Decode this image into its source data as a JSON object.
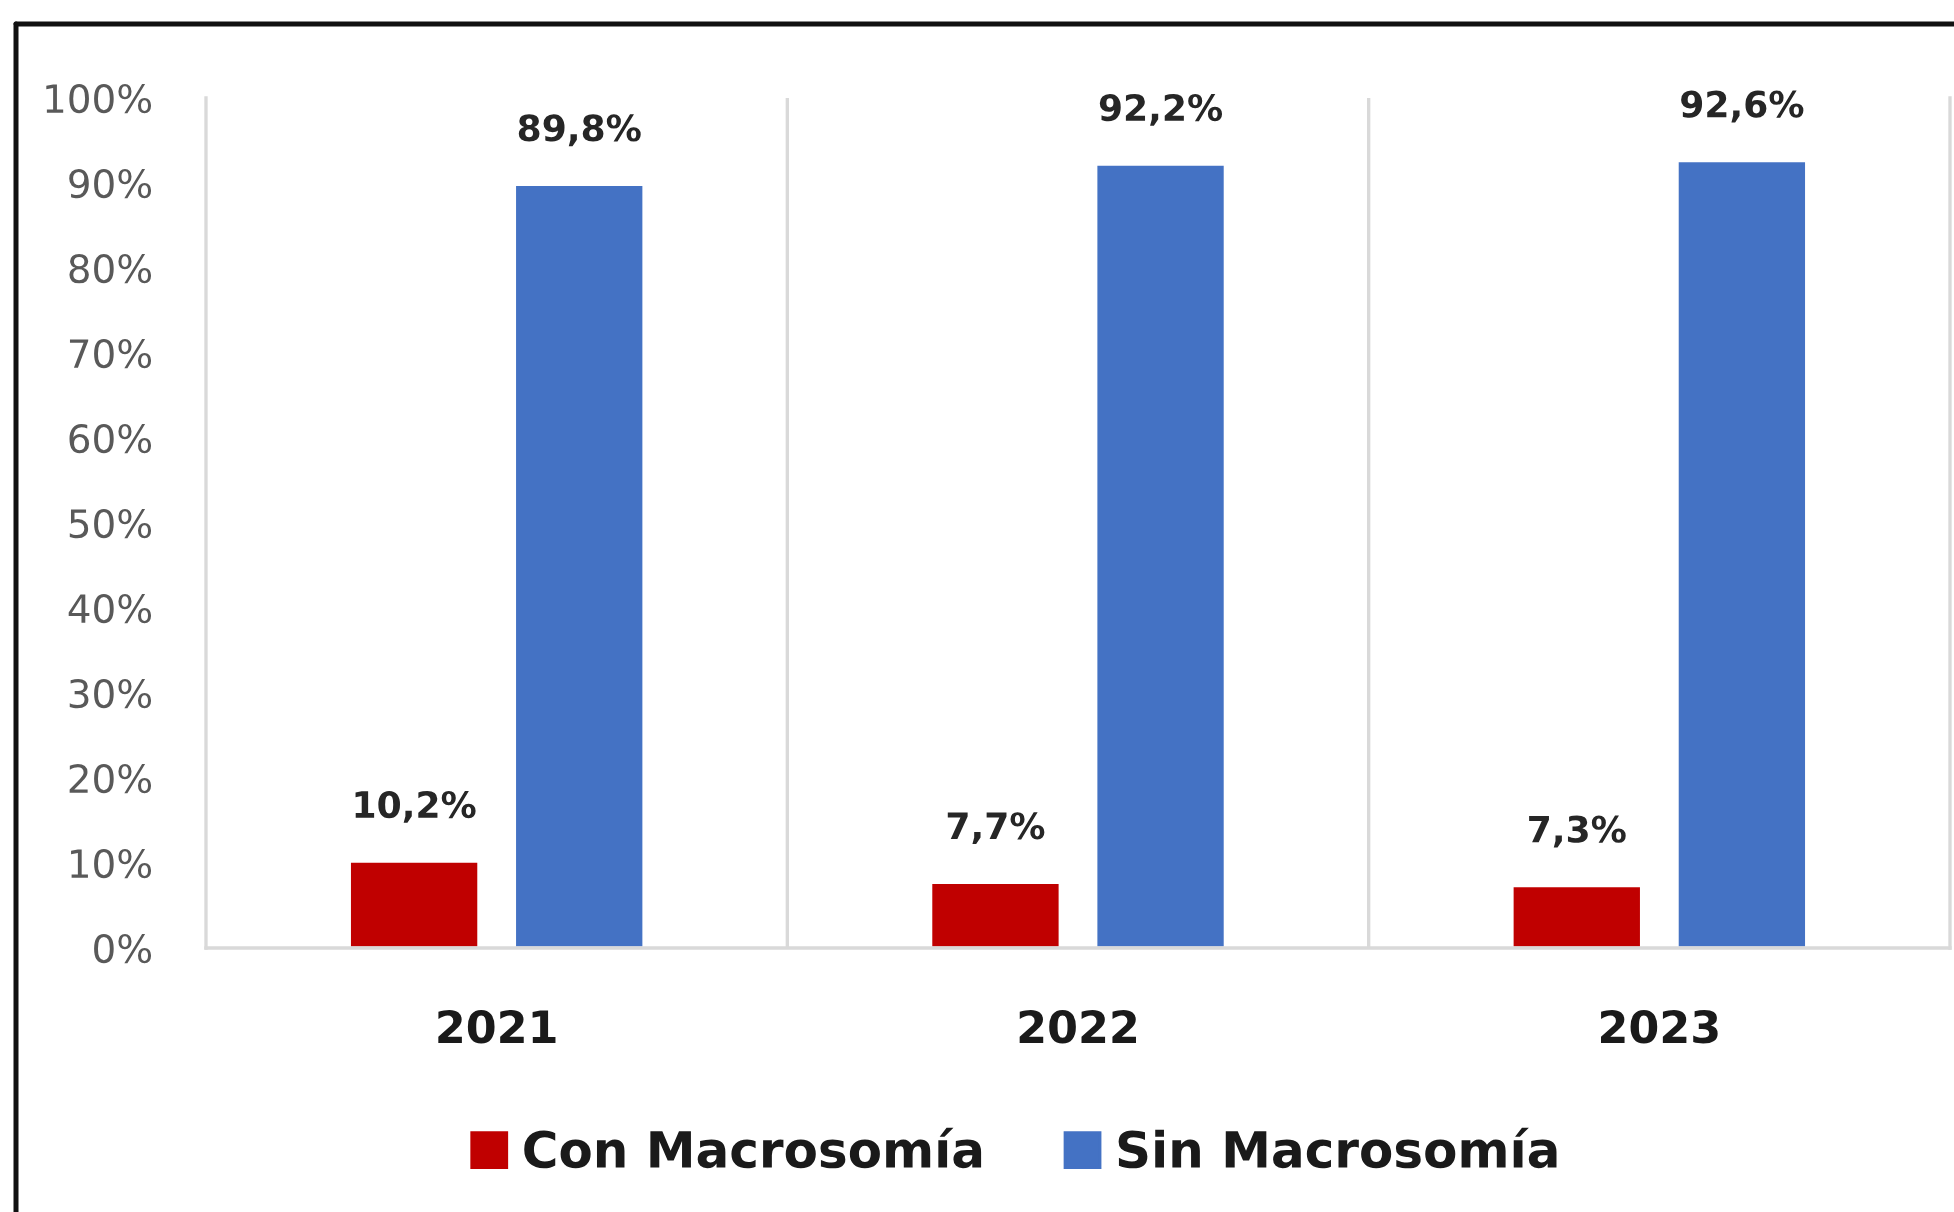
{
  "chart_data": {
    "type": "bar",
    "categories": [
      "2021",
      "2022",
      "2023"
    ],
    "series": [
      {
        "name": "Con Macrosomía",
        "color": "#c00000",
        "values": [
          10.2,
          7.7,
          7.3
        ],
        "value_labels": [
          "10,2%",
          "7,7%",
          "7,3%"
        ]
      },
      {
        "name": "Sin Macrosomía",
        "color": "#4472c4",
        "values": [
          89.8,
          92.2,
          92.6
        ],
        "value_labels": [
          "89,8%",
          "92,2%",
          "92,6%"
        ]
      }
    ],
    "ylim": [
      0,
      100
    ],
    "yticks": [
      {
        "value": 0,
        "label": "0%"
      },
      {
        "value": 10,
        "label": "10%"
      },
      {
        "value": 20,
        "label": "20%"
      },
      {
        "value": 30,
        "label": "30%"
      },
      {
        "value": 40,
        "label": "40%"
      },
      {
        "value": 50,
        "label": "50%"
      },
      {
        "value": 60,
        "label": "60%"
      },
      {
        "value": 70,
        "label": "70%"
      },
      {
        "value": 80,
        "label": "80%"
      },
      {
        "value": 90,
        "label": "90%"
      },
      {
        "value": 100,
        "label": "100%"
      }
    ],
    "grid": "x",
    "legend": "bottom"
  }
}
